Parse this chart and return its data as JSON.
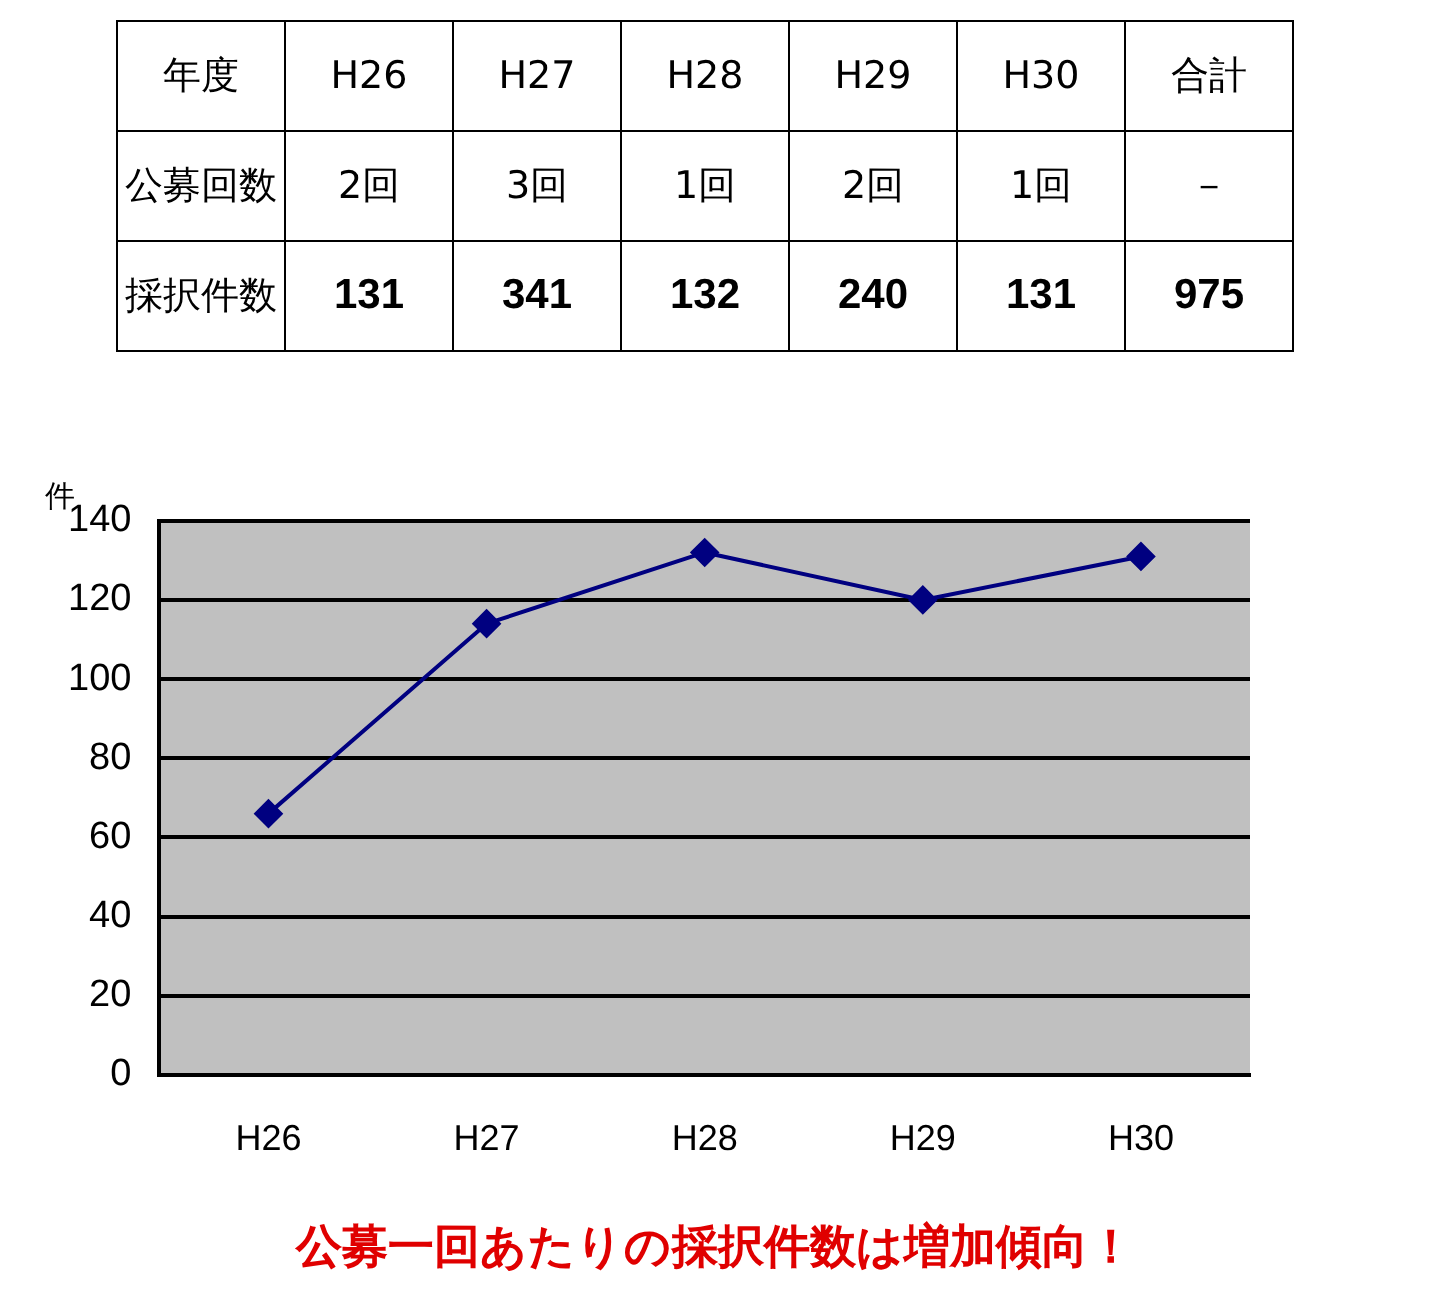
{
  "chart_data": [
    {
      "type": "other",
      "categories": [
        "年度",
        "H26",
        "H27",
        "H28",
        "H29",
        "H30",
        "合計"
      ],
      "annotations": [
        "公募回数",
        "2回",
        "3回",
        "1回",
        "2回",
        "1回",
        "－",
        "採択件数",
        "131",
        "341",
        "132",
        "240",
        "131",
        "975"
      ]
    },
    {
      "type": "line",
      "categories": [
        "H26",
        "H27",
        "H28",
        "H29",
        "H30"
      ],
      "series": [
        {
          "color": "#000080",
          "values": [
            66,
            114,
            132,
            120,
            131
          ]
        }
      ],
      "ylabel": "件",
      "ylim": [
        0,
        140
      ],
      "yticks": [
        0,
        20,
        40,
        60,
        80,
        100,
        120,
        140
      ],
      "grid": "y",
      "legend": false,
      "marker": "diamond",
      "line_style": "solid",
      "annotations": [
        "公募一回あたりの採択件数は増加傾向！"
      ]
    }
  ]
}
